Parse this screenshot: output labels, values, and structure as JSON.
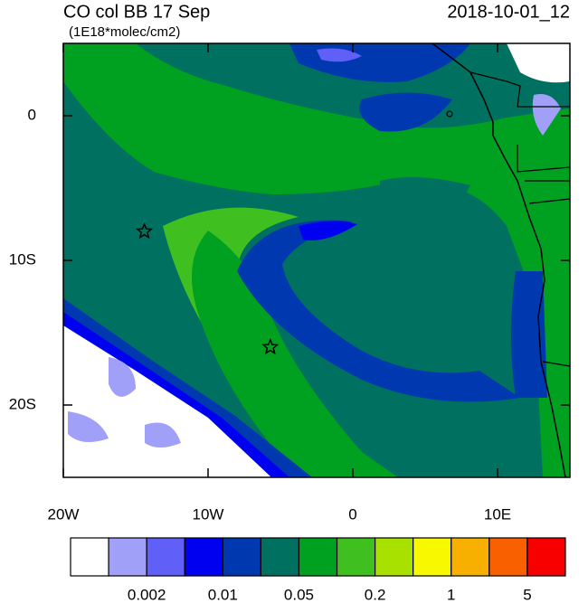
{
  "title_left": "CO col BB 17 Sep",
  "title_right": "2018-10-01_12",
  "units": "(1E18*molec/cm2)",
  "map": {
    "xlim": [
      -20,
      15
    ],
    "ylim": [
      -25,
      5
    ],
    "xticks": [
      {
        "value": -20,
        "label": "20W"
      },
      {
        "value": -10,
        "label": "10W"
      },
      0,
      {
        "value": 10,
        "label": "10E"
      }
    ],
    "yticks": [
      0,
      {
        "value": -10,
        "label": "10S"
      },
      {
        "value": -20,
        "label": "20S"
      }
    ],
    "markers": [
      {
        "lon": -14.4,
        "lat": -8
      },
      {
        "lon": -5.7,
        "lat": -16
      }
    ]
  },
  "colorbar": {
    "colors": [
      "#ffffff",
      "#a0a0f8",
      "#6060f8",
      "#0000f0",
      "#0038b0",
      "#007060",
      "#00a020",
      "#40c020",
      "#a8e000",
      "#f8f800",
      "#f8b000",
      "#f86000",
      "#f80000"
    ],
    "labels": [
      0.002,
      0.01,
      0.05,
      0.2,
      1,
      5
    ]
  }
}
